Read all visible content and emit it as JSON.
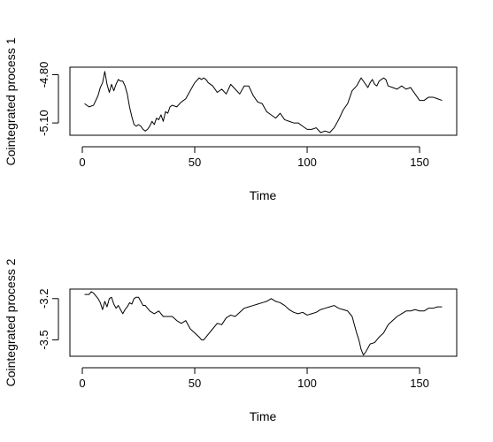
{
  "chart_data": [
    {
      "type": "line",
      "title": "",
      "xlabel": "Time",
      "ylabel": "Cointegrated process 1",
      "xlim": [
        0,
        161
      ],
      "ylim": [
        -5.16,
        -4.77
      ],
      "xticks": [
        0,
        50,
        100,
        150
      ],
      "xtick_labels": [
        "0",
        "50",
        "100",
        "150"
      ],
      "yticks": [
        -5.1,
        -4.8
      ],
      "ytick_labels": [
        "-5.10",
        "-4.80"
      ],
      "series": [
        {
          "name": "",
          "x": [
            1,
            3,
            5,
            7,
            8,
            9,
            10,
            11,
            12,
            13,
            14,
            15,
            16,
            17,
            18,
            19,
            20,
            21,
            22,
            23,
            24,
            25,
            26,
            27,
            28,
            29,
            30,
            31,
            32,
            33,
            34,
            35,
            36,
            37,
            38,
            39,
            40,
            42,
            44,
            46,
            48,
            50,
            52,
            53,
            54,
            55,
            56,
            58,
            60,
            62,
            64,
            66,
            68,
            70,
            72,
            74,
            76,
            78,
            80,
            82,
            84,
            86,
            88,
            90,
            92,
            94,
            96,
            98,
            100,
            102,
            104,
            106,
            108,
            110,
            112,
            114,
            116,
            118,
            120,
            122,
            124,
            125,
            126,
            127,
            128,
            129,
            130,
            131,
            132,
            133,
            134,
            135,
            136,
            138,
            140,
            142,
            144,
            146,
            148,
            150,
            152,
            154,
            156,
            158,
            160
          ],
          "values": [
            -4.98,
            -5.0,
            -4.99,
            -4.93,
            -4.88,
            -4.85,
            -4.78,
            -4.86,
            -4.91,
            -4.86,
            -4.9,
            -4.86,
            -4.83,
            -4.84,
            -4.84,
            -4.87,
            -4.92,
            -5.0,
            -5.06,
            -5.11,
            -5.12,
            -5.11,
            -5.12,
            -5.14,
            -5.15,
            -5.14,
            -5.12,
            -5.09,
            -5.11,
            -5.07,
            -5.08,
            -5.05,
            -5.09,
            -5.03,
            -5.04,
            -5.0,
            -4.99,
            -5.0,
            -4.97,
            -4.95,
            -4.9,
            -4.85,
            -4.82,
            -4.83,
            -4.82,
            -4.83,
            -4.85,
            -4.87,
            -4.91,
            -4.89,
            -4.92,
            -4.86,
            -4.89,
            -4.92,
            -4.87,
            -4.87,
            -4.93,
            -4.97,
            -4.98,
            -5.03,
            -5.05,
            -5.07,
            -5.04,
            -5.08,
            -5.09,
            -5.1,
            -5.1,
            -5.12,
            -5.14,
            -5.14,
            -5.13,
            -5.16,
            -5.15,
            -5.16,
            -5.13,
            -5.08,
            -5.02,
            -4.98,
            -4.9,
            -4.87,
            -4.82,
            -4.84,
            -4.86,
            -4.88,
            -4.85,
            -4.83,
            -4.86,
            -4.87,
            -4.84,
            -4.83,
            -4.82,
            -4.83,
            -4.87,
            -4.88,
            -4.89,
            -4.87,
            -4.89,
            -4.88,
            -4.92,
            -4.96,
            -4.96,
            -4.94,
            -4.94,
            -4.95,
            -4.96
          ]
        }
      ]
    },
    {
      "type": "line",
      "title": "",
      "xlabel": "Time",
      "ylabel": "Cointegrated process 2",
      "xlim": [
        0,
        161
      ],
      "ylim": [
        -3.6,
        -3.15
      ],
      "xticks": [
        0,
        50,
        100,
        150
      ],
      "xtick_labels": [
        "0",
        "50",
        "100",
        "150"
      ],
      "yticks": [
        -3.5,
        -3.2
      ],
      "ytick_labels": [
        "-3.5",
        "-3.2"
      ],
      "series": [
        {
          "name": "",
          "x": [
            1,
            3,
            4,
            5,
            6,
            7,
            8,
            9,
            10,
            11,
            12,
            13,
            14,
            15,
            16,
            17,
            18,
            19,
            20,
            21,
            22,
            23,
            24,
            25,
            26,
            27,
            28,
            29,
            30,
            32,
            34,
            36,
            38,
            40,
            42,
            44,
            46,
            48,
            50,
            52,
            53,
            54,
            56,
            58,
            60,
            62,
            64,
            66,
            68,
            70,
            72,
            74,
            76,
            78,
            80,
            82,
            84,
            86,
            88,
            90,
            92,
            94,
            96,
            98,
            100,
            102,
            104,
            106,
            108,
            110,
            112,
            114,
            116,
            118,
            120,
            121,
            122,
            123,
            124,
            125,
            126,
            127,
            128,
            130,
            132,
            134,
            136,
            138,
            140,
            142,
            144,
            146,
            148,
            150,
            152,
            154,
            156,
            158,
            160
          ],
          "values": [
            -3.17,
            -3.17,
            -3.15,
            -3.16,
            -3.18,
            -3.2,
            -3.23,
            -3.28,
            -3.22,
            -3.26,
            -3.2,
            -3.19,
            -3.24,
            -3.27,
            -3.25,
            -3.28,
            -3.31,
            -3.28,
            -3.26,
            -3.23,
            -3.24,
            -3.2,
            -3.19,
            -3.19,
            -3.22,
            -3.25,
            -3.25,
            -3.27,
            -3.29,
            -3.31,
            -3.29,
            -3.33,
            -3.33,
            -3.33,
            -3.36,
            -3.38,
            -3.36,
            -3.42,
            -3.45,
            -3.48,
            -3.5,
            -3.5,
            -3.46,
            -3.42,
            -3.38,
            -3.39,
            -3.34,
            -3.32,
            -3.33,
            -3.3,
            -3.27,
            -3.26,
            -3.25,
            -3.24,
            -3.23,
            -3.22,
            -3.2,
            -3.22,
            -3.23,
            -3.25,
            -3.28,
            -3.3,
            -3.31,
            -3.3,
            -3.32,
            -3.31,
            -3.3,
            -3.28,
            -3.27,
            -3.26,
            -3.25,
            -3.27,
            -3.28,
            -3.29,
            -3.33,
            -3.39,
            -3.45,
            -3.5,
            -3.57,
            -3.61,
            -3.59,
            -3.56,
            -3.53,
            -3.52,
            -3.48,
            -3.45,
            -3.39,
            -3.36,
            -3.33,
            -3.31,
            -3.29,
            -3.29,
            -3.28,
            -3.29,
            -3.29,
            -3.27,
            -3.27,
            -3.26,
            -3.26
          ]
        }
      ]
    }
  ]
}
